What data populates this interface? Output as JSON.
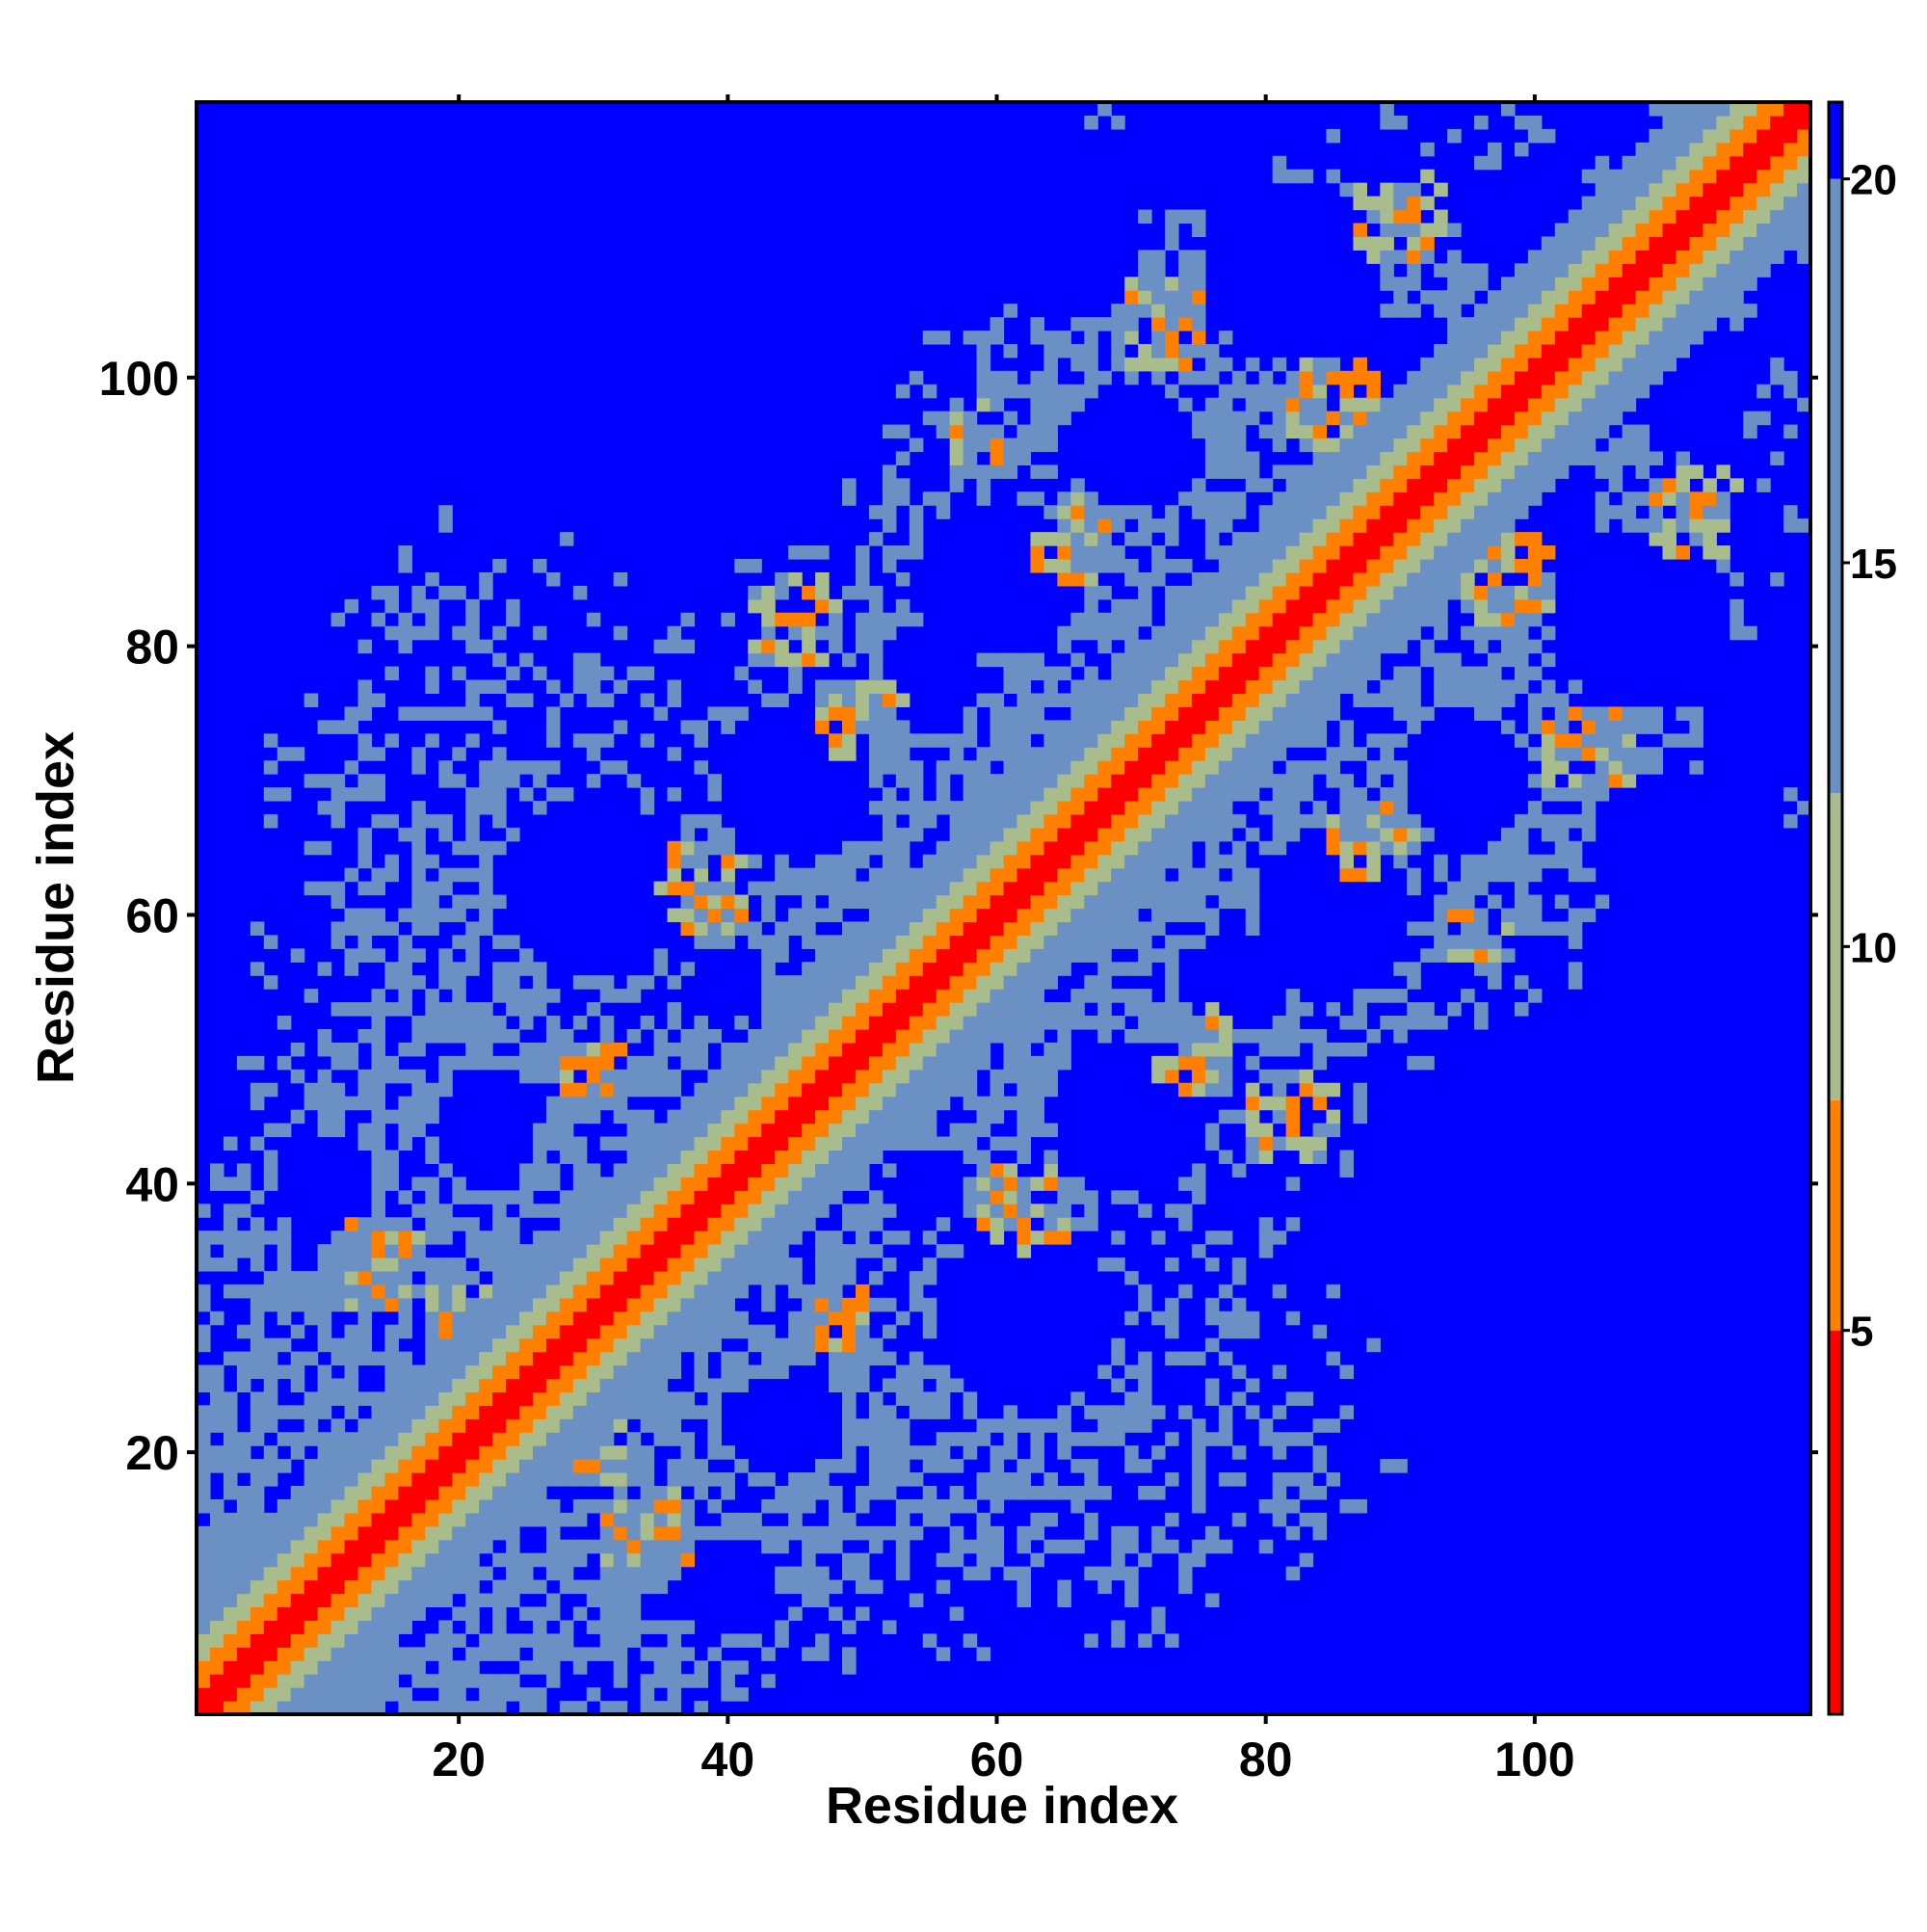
{
  "chart_data": {
    "type": "heatmap",
    "xlabel": "Residue index",
    "ylabel": "Residue index",
    "n_residues": 120,
    "x_range": [
      1,
      120
    ],
    "y_range": [
      1,
      120
    ],
    "x_ticks": [
      20,
      40,
      60,
      80,
      100
    ],
    "x_tick_labels": [
      "20",
      "40",
      "60",
      "80",
      "100"
    ],
    "y_ticks": [
      20,
      40,
      60,
      80,
      100
    ],
    "y_tick_labels": [
      "20",
      "40",
      "60",
      "80",
      "100"
    ],
    "colorbar": {
      "range": [
        0,
        21
      ],
      "ticks": [
        5,
        10,
        15,
        20
      ],
      "tick_labels": [
        "5",
        "10",
        "15",
        "20"
      ],
      "placement": "right",
      "bands": [
        {
          "max": 5,
          "color": "#ff0000"
        },
        {
          "max": 8,
          "color": "#ff8000"
        },
        {
          "max": 12,
          "color": "#a8bc8c"
        },
        {
          "max": 20,
          "color": "#6a90c4"
        },
        {
          "max": 21,
          "color": "#0000ff"
        }
      ]
    },
    "symmetric": true,
    "diagonal_value": 1,
    "grid": false
  }
}
